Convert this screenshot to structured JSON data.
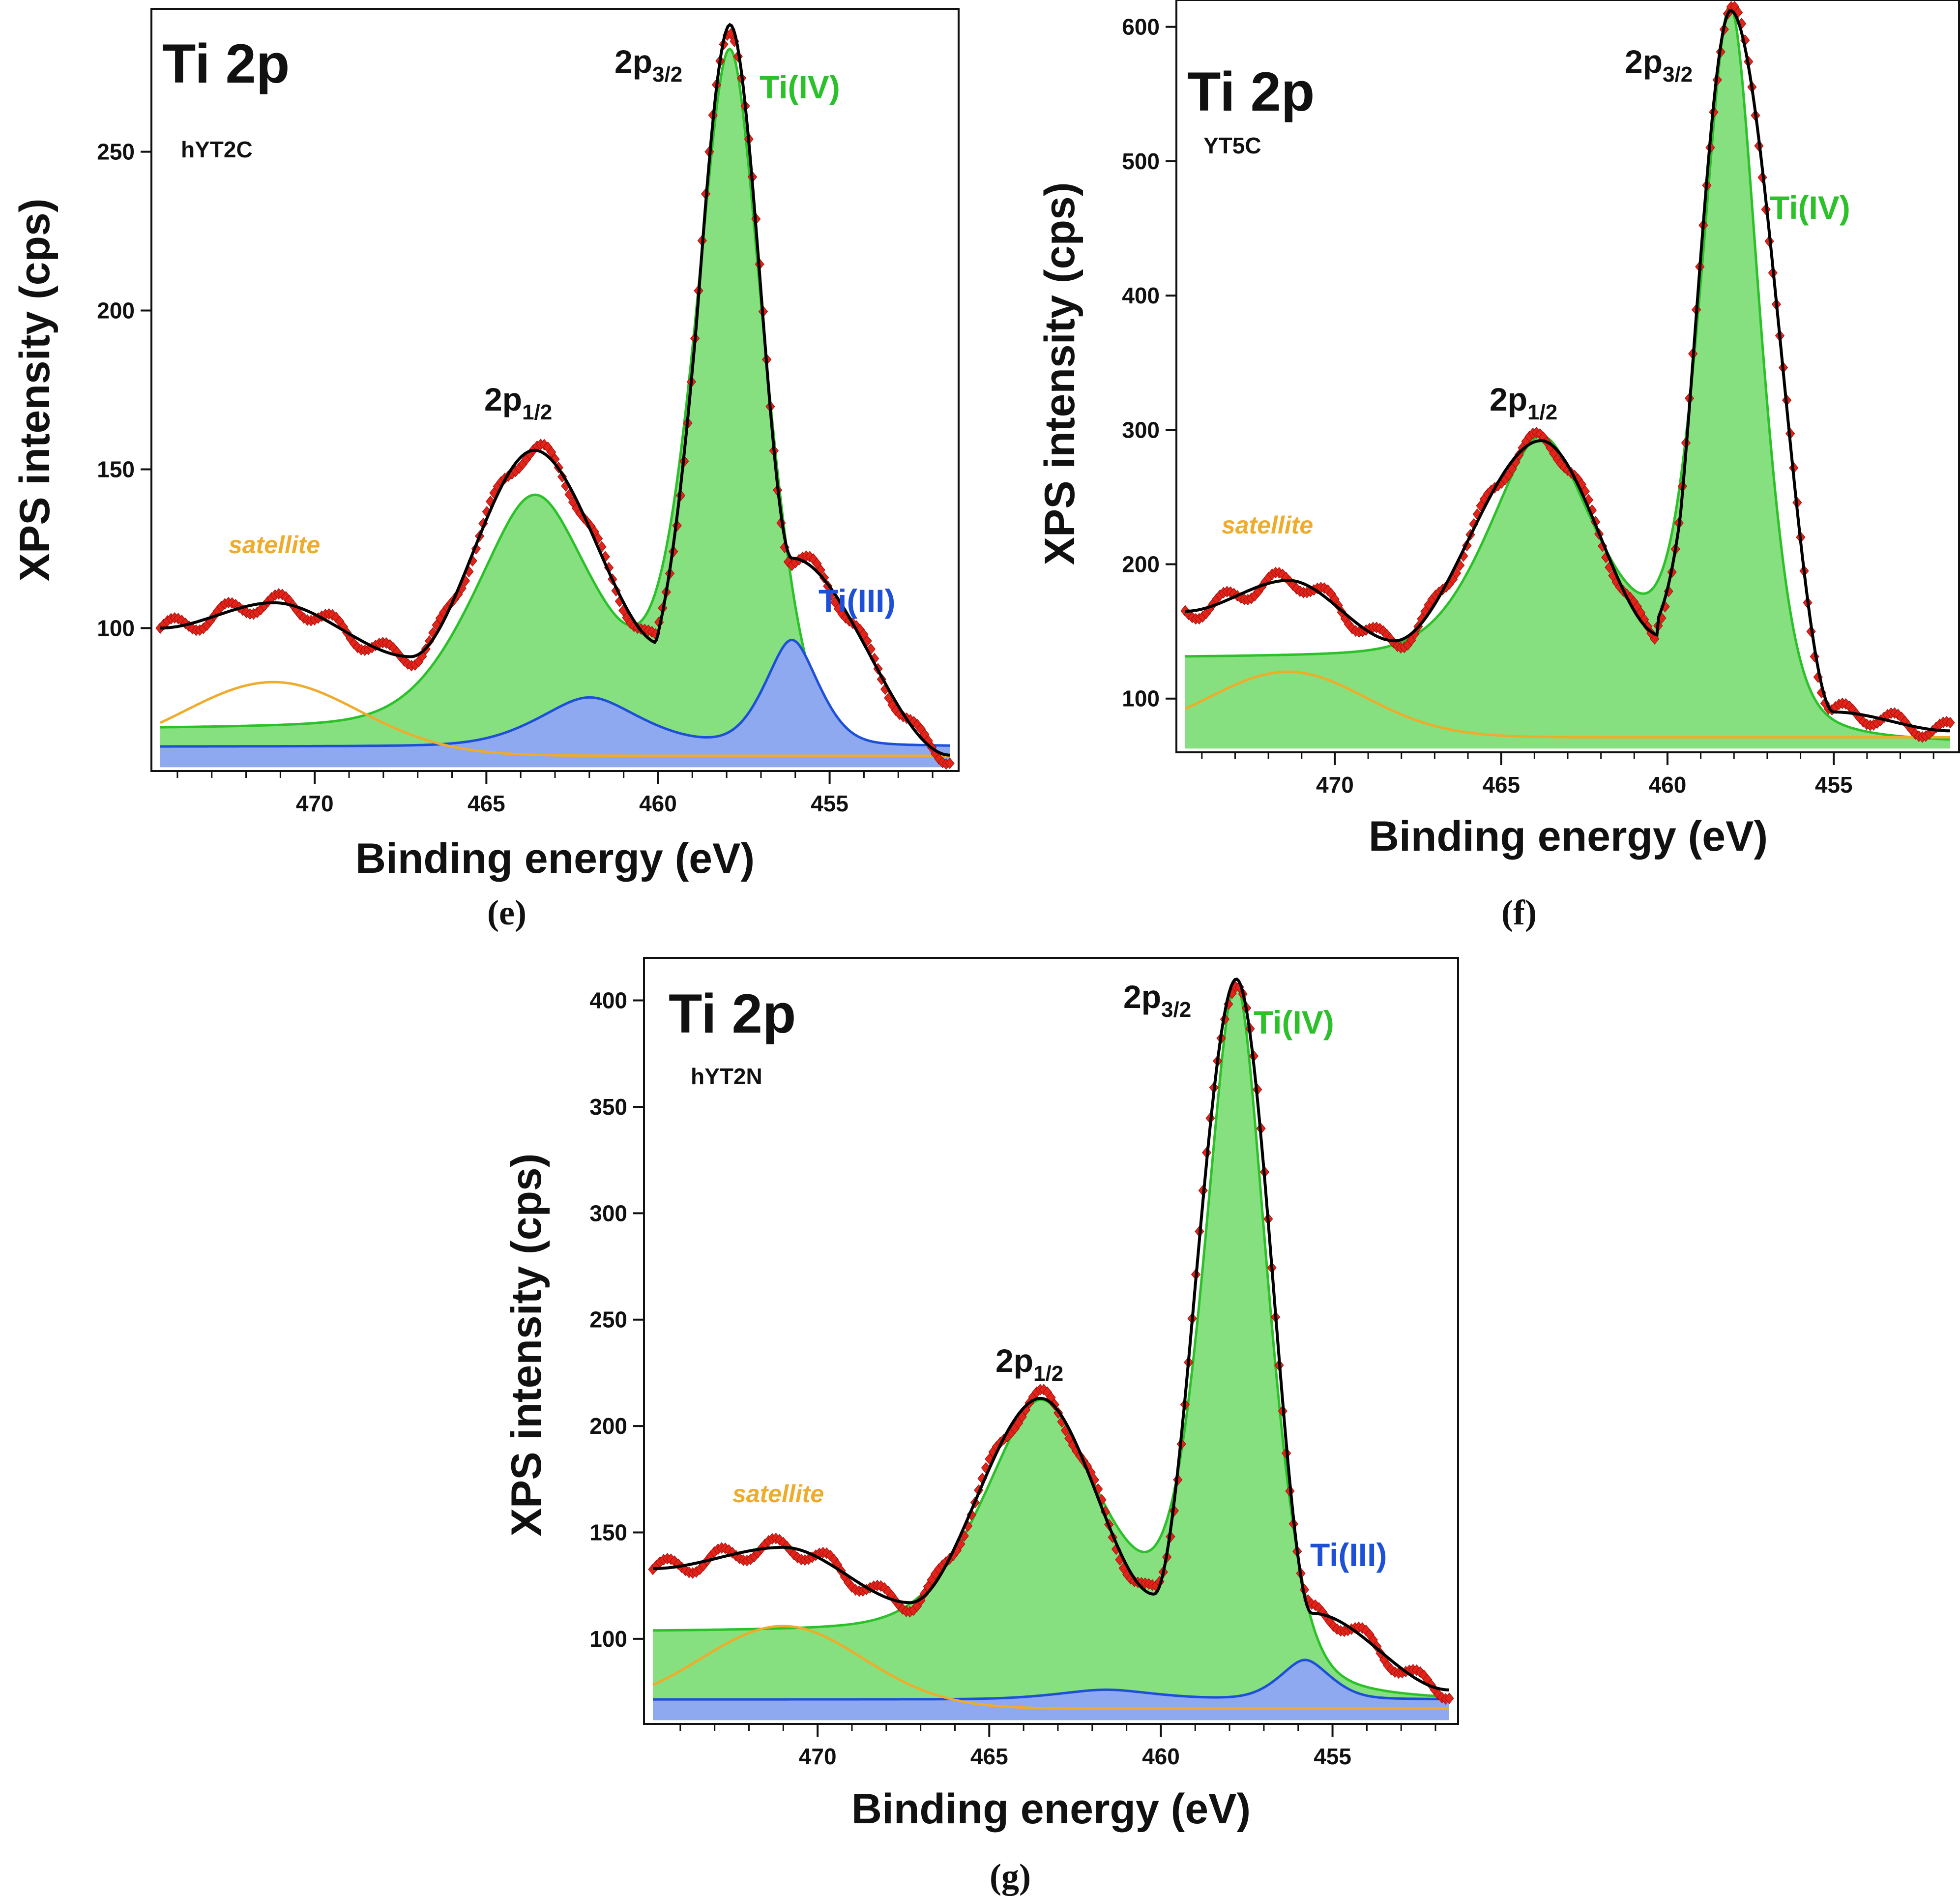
{
  "figure": {
    "colors": {
      "ti4_fill": "#86e07f",
      "ti4_line": "#2cc12a",
      "ti3_fill": "#8ea9ef",
      "ti3_line": "#1d4fd8",
      "satellite_line": "#efab2b",
      "data_marker": "#e2231a",
      "fit_line": "#000000"
    }
  },
  "chart_data": [
    {
      "type": "line",
      "panel_caption": "(e)",
      "title": "Ti 2p",
      "sample": "hYT2C",
      "xlabel": "Binding energy (eV)",
      "ylabel": "XPS intensity (cps)",
      "xlim": [
        474.5,
        451.5
      ],
      "ylim": [
        55,
        295
      ],
      "x_ticks": [
        470,
        465,
        460,
        455
      ],
      "y_ticks": [
        100,
        150,
        200,
        250
      ],
      "annotations": {
        "p12": {
          "text": "2p",
          "sub": "1/2"
        },
        "p32": {
          "text": "2p",
          "sub": "3/2"
        },
        "ti4": "Ti(IV)",
        "ti3": "Ti(III)",
        "satellite": "satellite"
      },
      "series": [
        {
          "name": "Ti(IV) 2p1/2",
          "role": "ti4",
          "peak_x": 463.6,
          "peak_y": 140,
          "width": 1.9
        },
        {
          "name": "Ti(IV) 2p3/2",
          "role": "ti4",
          "peak_x": 457.9,
          "peak_y": 280,
          "width": 1.1
        },
        {
          "name": "Ti(III) 2p1/2",
          "role": "ti3",
          "peak_x": 462.0,
          "peak_y": 78,
          "width": 1.6
        },
        {
          "name": "Ti(III) 2p3/2",
          "role": "ti3",
          "peak_x": 456.1,
          "peak_y": 96,
          "width": 0.85
        },
        {
          "name": "satellite",
          "role": "satellite",
          "peak_x": 471.2,
          "peak_y": 83,
          "width": 2.6
        },
        {
          "name": "experimental data",
          "role": "data"
        },
        {
          "name": "envelope fit",
          "role": "fit"
        }
      ],
      "baseline": {
        "high_be": 68,
        "low_be": 58
      },
      "envelope": {
        "high_be": 100,
        "points": [
          [
            474.5,
            100
          ],
          [
            471.2,
            108
          ],
          [
            467.2,
            91
          ],
          [
            463.6,
            156
          ],
          [
            459.9,
            95
          ],
          [
            457.9,
            290
          ],
          [
            456.1,
            122
          ],
          [
            451.5,
            60
          ]
        ]
      }
    },
    {
      "type": "line",
      "panel_caption": "(f)",
      "title": "Ti 2p",
      "sample": "YT5C",
      "xlabel": "Binding energy (eV)",
      "ylabel": "XPS intensity (cps)",
      "xlim": [
        474.5,
        451.5
      ],
      "ylim": [
        60,
        620
      ],
      "x_ticks": [
        470,
        465,
        460,
        455
      ],
      "y_ticks": [
        100,
        200,
        300,
        400,
        500,
        600
      ],
      "annotations": {
        "p12": {
          "text": "2p",
          "sub": "1/2"
        },
        "p32": {
          "text": "2p",
          "sub": "3/2"
        },
        "ti4": "Ti(IV)",
        "satellite": "satellite"
      },
      "series": [
        {
          "name": "Ti(IV) 2p1/2",
          "role": "ti4",
          "peak_x": 463.8,
          "peak_y": 292,
          "width": 1.7
        },
        {
          "name": "Ti(IV) 2p3/2",
          "role": "ti4",
          "peak_x": 458.1,
          "peak_y": 612,
          "width": 0.95
        },
        {
          "name": "satellite",
          "role": "satellite",
          "peak_x": 471.4,
          "peak_y": 120,
          "width": 2.4
        },
        {
          "name": "experimental data",
          "role": "data"
        },
        {
          "name": "envelope fit",
          "role": "fit"
        }
      ],
      "baseline": {
        "high_be": 130,
        "low_be": 66
      },
      "envelope": {
        "high_be": 165,
        "points": [
          [
            474.5,
            165
          ],
          [
            471.4,
            188
          ],
          [
            468.2,
            143
          ],
          [
            463.8,
            292
          ],
          [
            460.2,
            147
          ],
          [
            458.1,
            612
          ],
          [
            455.0,
            90
          ],
          [
            451.5,
            76
          ]
        ]
      }
    },
    {
      "type": "line",
      "panel_caption": "(g)",
      "title": "Ti 2p",
      "sample": "hYT2N",
      "xlabel": "Binding energy (eV)",
      "ylabel": "XPS intensity (cps)",
      "xlim": [
        474.8,
        451.6
      ],
      "ylim": [
        60,
        420
      ],
      "x_ticks": [
        470,
        465,
        460,
        455
      ],
      "y_ticks": [
        100,
        150,
        200,
        250,
        300,
        350,
        400
      ],
      "annotations": {
        "p12": {
          "text": "2p",
          "sub": "1/2"
        },
        "p32": {
          "text": "2p",
          "sub": "3/2"
        },
        "ti4": "Ti(IV)",
        "ti3": "Ti(III)",
        "satellite": "satellite"
      },
      "series": [
        {
          "name": "Ti(IV) 2p1/2",
          "role": "ti4",
          "peak_x": 463.5,
          "peak_y": 210,
          "width": 1.8
        },
        {
          "name": "Ti(IV) 2p3/2",
          "role": "ti4",
          "peak_x": 457.8,
          "peak_y": 405,
          "width": 1.0
        },
        {
          "name": "Ti(III) 2p1/2",
          "role": "ti3",
          "peak_x": 461.6,
          "peak_y": 76,
          "width": 1.5
        },
        {
          "name": "Ti(III) 2p3/2",
          "role": "ti3",
          "peak_x": 455.8,
          "peak_y": 90,
          "width": 0.8
        },
        {
          "name": "satellite",
          "role": "satellite",
          "peak_x": 471.0,
          "peak_y": 106,
          "width": 2.4
        },
        {
          "name": "experimental data",
          "role": "data"
        },
        {
          "name": "envelope fit",
          "role": "fit"
        }
      ],
      "baseline": {
        "high_be": 103,
        "low_be": 70
      },
      "envelope": {
        "high_be": 133,
        "points": [
          [
            474.8,
            133
          ],
          [
            471.0,
            143
          ],
          [
            467.3,
            117
          ],
          [
            463.5,
            213
          ],
          [
            460.2,
            121
          ],
          [
            457.8,
            410
          ],
          [
            455.6,
            112
          ],
          [
            451.6,
            76
          ]
        ]
      }
    }
  ]
}
